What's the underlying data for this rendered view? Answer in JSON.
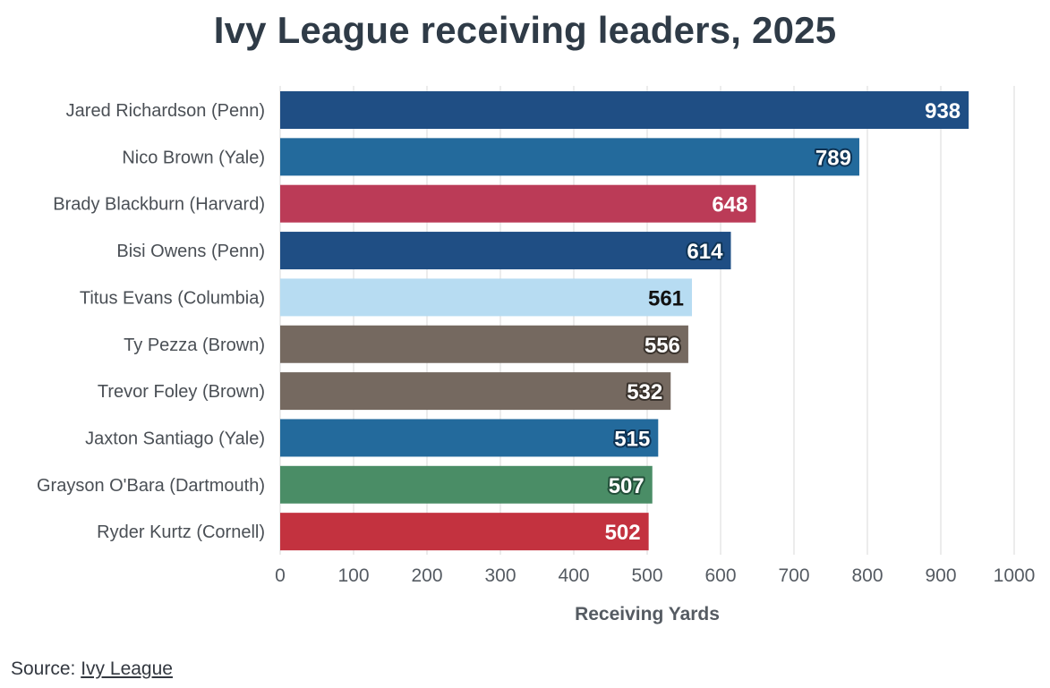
{
  "chart_data": {
    "type": "bar",
    "orientation": "horizontal",
    "title": "Ivy League receiving leaders, 2025",
    "xlabel": "Receiving Yards",
    "ylabel": "",
    "xlim": [
      0,
      1000
    ],
    "xticks": [
      0,
      100,
      200,
      300,
      400,
      500,
      600,
      700,
      800,
      900,
      1000
    ],
    "grid": true,
    "categories": [
      "Jared Richardson (Penn)",
      "Nico Brown (Yale)",
      "Brady Blackburn (Harvard)",
      "Bisi Owens (Penn)",
      "Titus Evans (Columbia)",
      "Ty Pezza (Brown)",
      "Trevor Foley (Brown)",
      "Jaxton Santiago (Yale)",
      "Grayson O'Bara (Dartmouth)",
      "Ryder Kurtz (Cornell)"
    ],
    "values": [
      938,
      789,
      648,
      614,
      561,
      556,
      532,
      515,
      507,
      502
    ],
    "colors": [
      "#1f4e84",
      "#236a9c",
      "#bb3b57",
      "#1f4e84",
      "#b7dcf2",
      "#756960",
      "#756960",
      "#236a9c",
      "#4a8d66",
      "#c3323f"
    ],
    "label_colors": [
      "#ffffff",
      "#ffffff",
      "#ffffff",
      "#ffffff",
      "#111111",
      "#ffffff",
      "#ffffff",
      "#ffffff",
      "#ffffff",
      "#ffffff"
    ],
    "label_halo_colors": [
      "#1f4e84",
      "#0e3354",
      "#bb3b57",
      "#0e3354",
      "#b7dcf2",
      "#3a332d",
      "#3a332d",
      "#0e3354",
      "#23503a",
      "#c3323f"
    ]
  },
  "source": {
    "prefix": "Source: ",
    "link_text": "Ivy League"
  }
}
